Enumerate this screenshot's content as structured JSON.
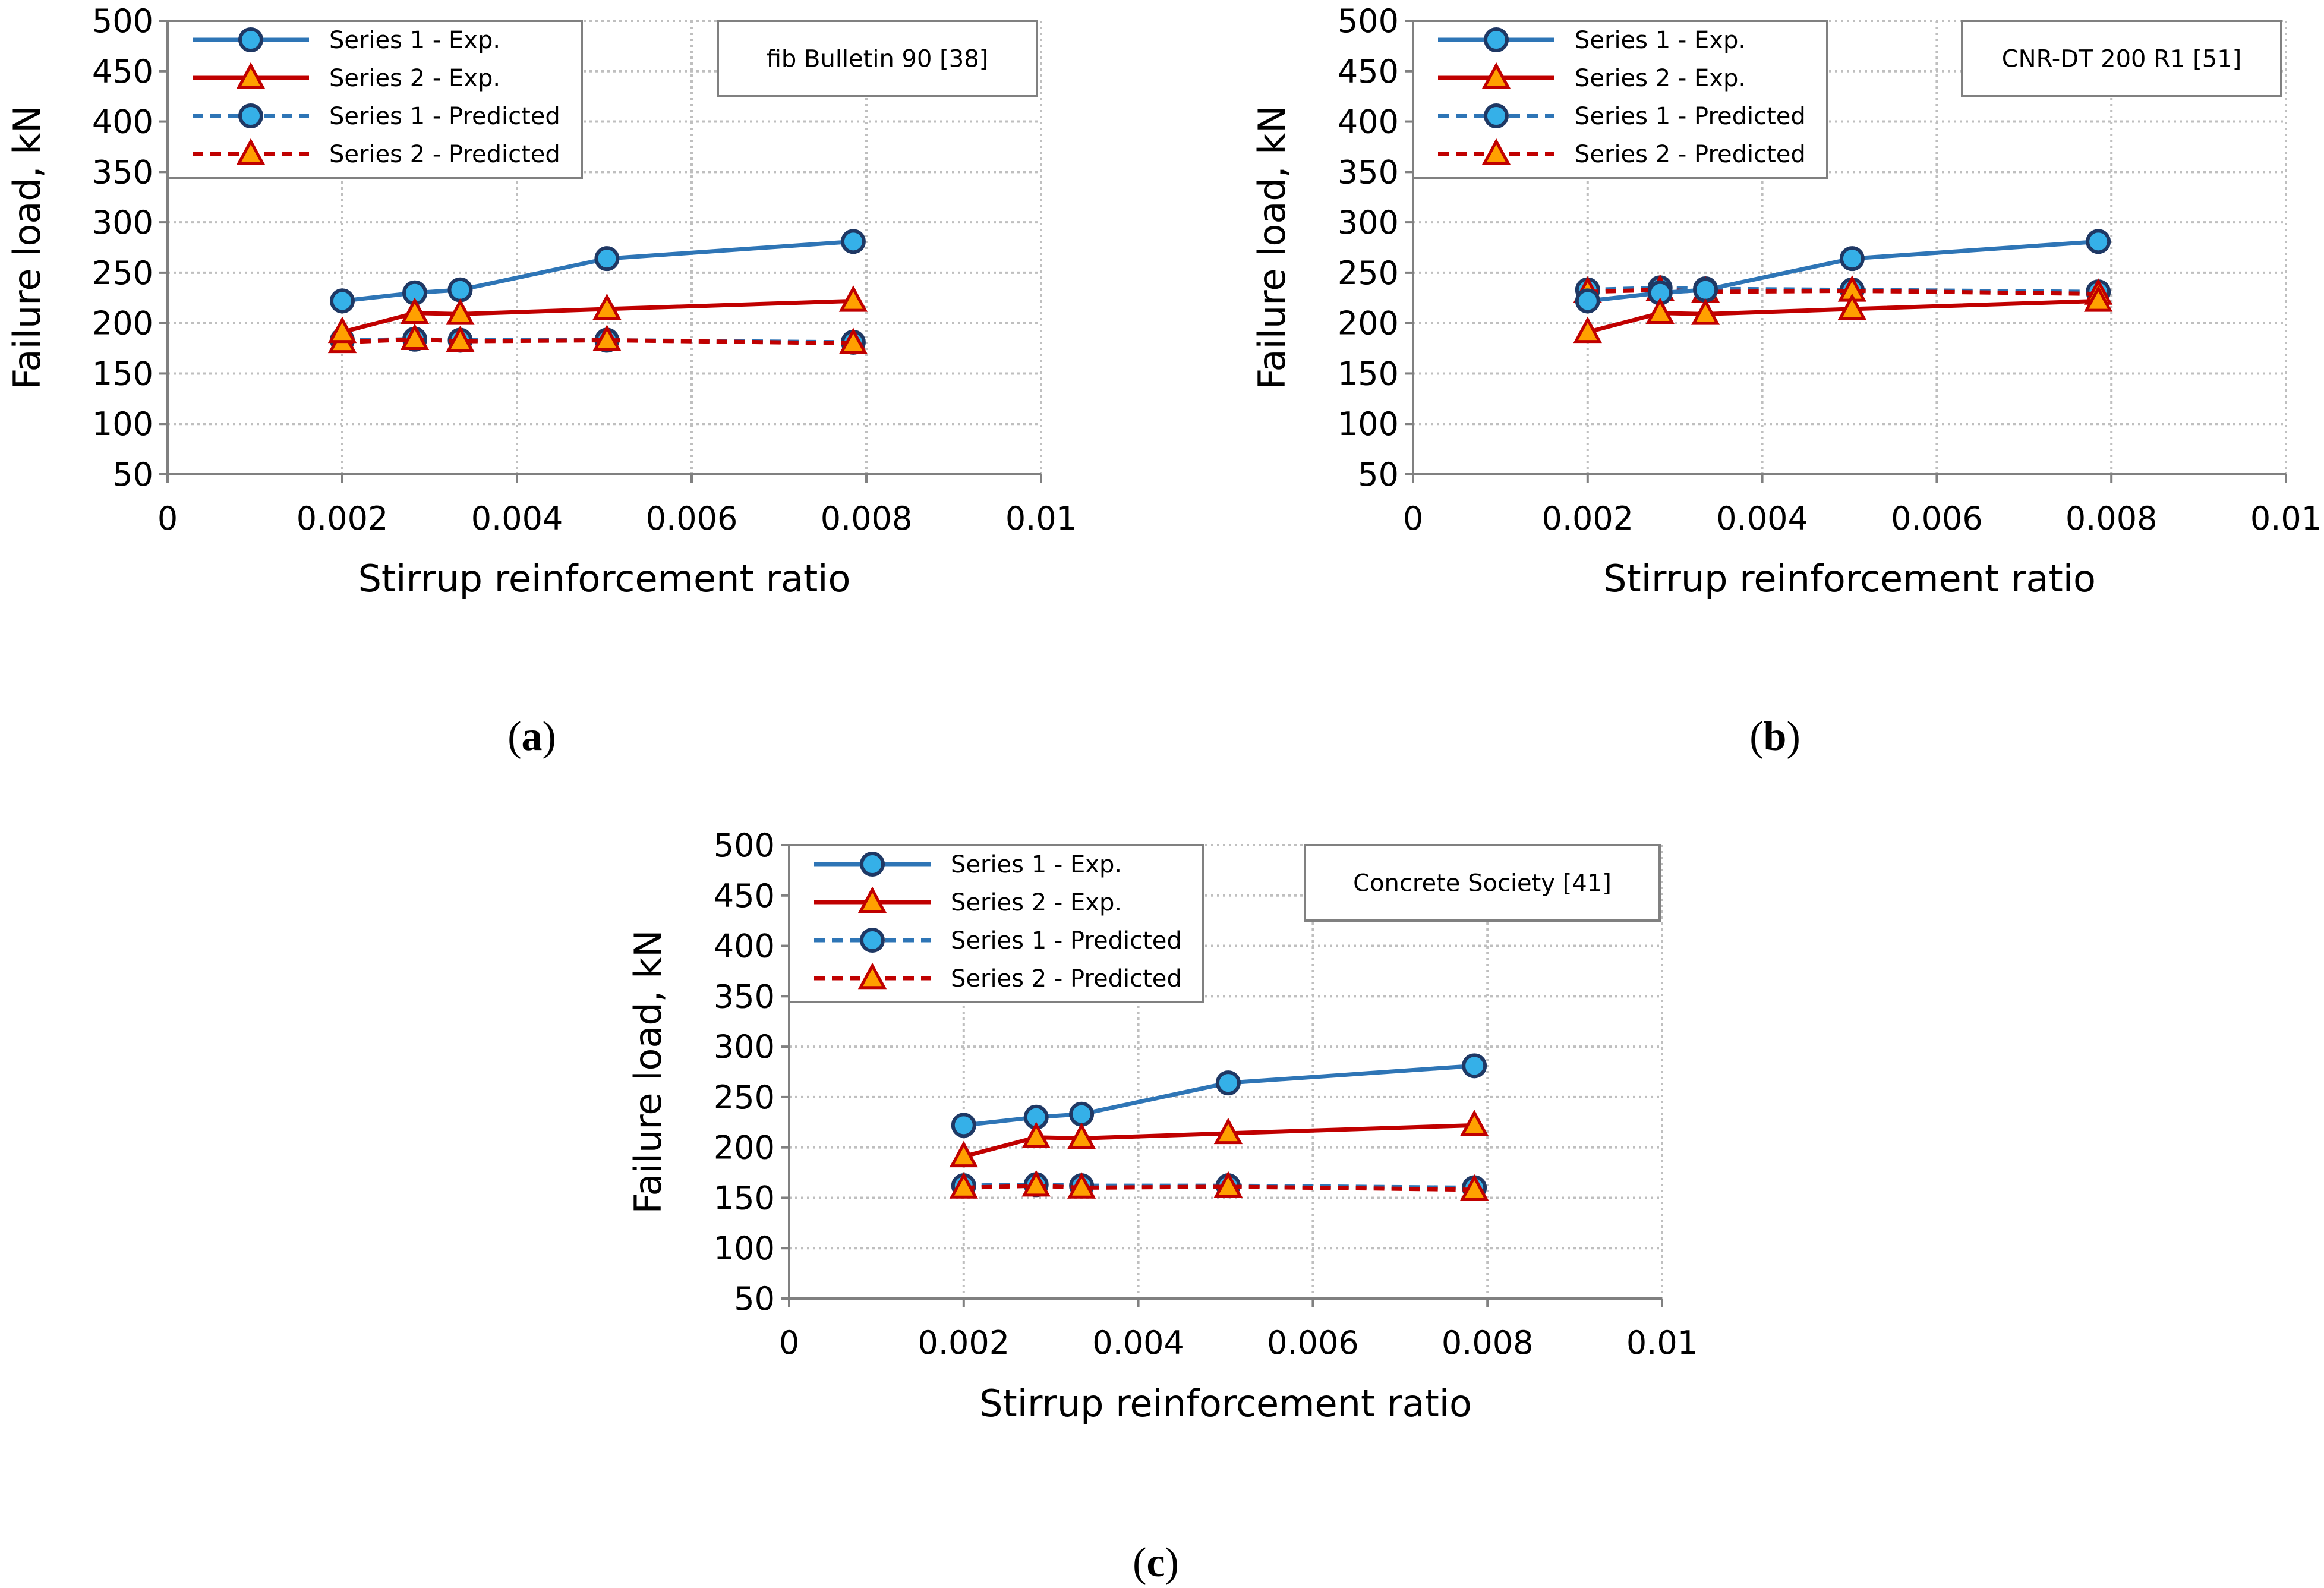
{
  "figure": {
    "colors": {
      "series1": "#2E75B6",
      "series1_fill": "#35B0E8",
      "series1_edge": "#1F3864",
      "series2": "#C00000",
      "series2_fill": "#FFA000",
      "grid": "#BFBFBF",
      "axis": "#000000"
    }
  },
  "chart_data": [
    {
      "id": "a",
      "type": "line",
      "caption": "a",
      "reference": "fib Bulletin 90 [38]",
      "xlabel": "Stirrup reinforcement ratio",
      "ylabel": "Failure load, kN",
      "xlim": [
        0,
        0.01
      ],
      "ylim": [
        50,
        500
      ],
      "xticks": [
        "0",
        "0.002",
        "0.004",
        "0.006",
        "0.008",
        "0.01"
      ],
      "yticks": [
        "500",
        "450",
        "400",
        "350",
        "300",
        "250",
        "200",
        "150",
        "100",
        "50"
      ],
      "grid": true,
      "legend_position": "top-left",
      "series": [
        {
          "name": "Series 1 - Exp.",
          "style": "solid",
          "marker": "circle",
          "color": "series1",
          "x": [
            0.002,
            0.00283,
            0.00335,
            0.00503,
            0.00785
          ],
          "values": [
            222,
            230,
            233,
            264,
            281
          ]
        },
        {
          "name": "Series 2 - Exp.",
          "style": "solid",
          "marker": "triangle",
          "color": "series2",
          "x": [
            0.002,
            0.00283,
            0.00335,
            0.00503,
            0.00785
          ],
          "values": [
            191,
            210,
            209,
            214,
            222
          ]
        },
        {
          "name": "Series 1 - Predicted",
          "style": "dashed",
          "marker": "circle",
          "color": "series1",
          "x": [
            0.002,
            0.00283,
            0.00335,
            0.00503,
            0.00785
          ],
          "values": [
            183,
            184,
            183,
            183,
            181
          ]
        },
        {
          "name": "Series 2 - Predicted",
          "style": "dashed",
          "marker": "triangle",
          "color": "series2",
          "x": [
            0.002,
            0.00283,
            0.00335,
            0.00503,
            0.00785
          ],
          "values": [
            181,
            184,
            182,
            183,
            180
          ]
        }
      ]
    },
    {
      "id": "b",
      "type": "line",
      "caption": "b",
      "reference": "CNR-DT 200 R1 [51]",
      "xlabel": "Stirrup reinforcement ratio",
      "ylabel": "Failure load, kN",
      "xlim": [
        0,
        0.01
      ],
      "ylim": [
        50,
        500
      ],
      "xticks": [
        "0",
        "0.002",
        "0.004",
        "0.006",
        "0.008",
        "0.01"
      ],
      "yticks": [
        "500",
        "450",
        "400",
        "350",
        "300",
        "250",
        "200",
        "150",
        "100",
        "50"
      ],
      "grid": true,
      "legend_position": "top-left",
      "series": [
        {
          "name": "Series 1 - Exp.",
          "style": "solid",
          "marker": "circle",
          "color": "series1",
          "x": [
            0.002,
            0.00283,
            0.00335,
            0.00503,
            0.00785
          ],
          "values": [
            222,
            230,
            233,
            264,
            281
          ]
        },
        {
          "name": "Series 2 - Exp.",
          "style": "solid",
          "marker": "triangle",
          "color": "series2",
          "x": [
            0.002,
            0.00283,
            0.00335,
            0.00503,
            0.00785
          ],
          "values": [
            191,
            210,
            209,
            214,
            222
          ]
        },
        {
          "name": "Series 1 - Predicted",
          "style": "dashed",
          "marker": "circle",
          "color": "series1",
          "x": [
            0.002,
            0.00283,
            0.00335,
            0.00503,
            0.00785
          ],
          "values": [
            233,
            235,
            234,
            233,
            231
          ]
        },
        {
          "name": "Series 2 - Predicted",
          "style": "dashed",
          "marker": "triangle",
          "color": "series2",
          "x": [
            0.002,
            0.00283,
            0.00335,
            0.00503,
            0.00785
          ],
          "values": [
            231,
            233,
            231,
            232,
            229
          ]
        }
      ]
    },
    {
      "id": "c",
      "type": "line",
      "caption": "c",
      "reference": "Concrete Society [41]",
      "xlabel": "Stirrup reinforcement ratio",
      "ylabel": "Failure load, kN",
      "xlim": [
        0,
        0.01
      ],
      "ylim": [
        50,
        500
      ],
      "xticks": [
        "0",
        "0.002",
        "0.004",
        "0.006",
        "0.008",
        "0.01"
      ],
      "yticks": [
        "500",
        "450",
        "400",
        "350",
        "300",
        "250",
        "200",
        "150",
        "100",
        "50"
      ],
      "grid": true,
      "legend_position": "top-left",
      "series": [
        {
          "name": "Series 1 - Exp.",
          "style": "solid",
          "marker": "circle",
          "color": "series1",
          "x": [
            0.002,
            0.00283,
            0.00335,
            0.00503,
            0.00785
          ],
          "values": [
            222,
            230,
            233,
            264,
            281
          ]
        },
        {
          "name": "Series 2 - Exp.",
          "style": "solid",
          "marker": "triangle",
          "color": "series2",
          "x": [
            0.002,
            0.00283,
            0.00335,
            0.00503,
            0.00785
          ],
          "values": [
            191,
            210,
            209,
            214,
            222
          ]
        },
        {
          "name": "Series 1 - Predicted",
          "style": "dashed",
          "marker": "circle",
          "color": "series1",
          "x": [
            0.002,
            0.00283,
            0.00335,
            0.00503,
            0.00785
          ],
          "values": [
            162,
            163,
            162,
            162,
            160
          ]
        },
        {
          "name": "Series 2 - Predicted",
          "style": "dashed",
          "marker": "triangle",
          "color": "series2",
          "x": [
            0.002,
            0.00283,
            0.00335,
            0.00503,
            0.00785
          ],
          "values": [
            160,
            162,
            160,
            161,
            158
          ]
        }
      ]
    }
  ]
}
